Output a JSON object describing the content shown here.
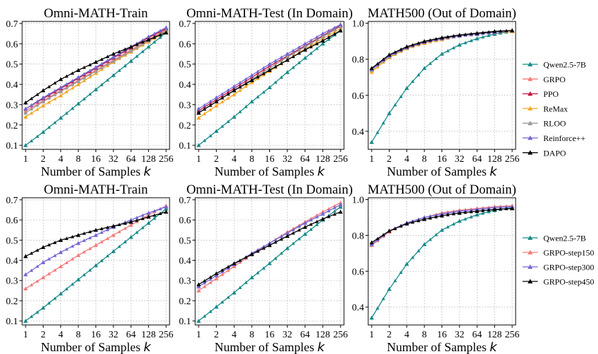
{
  "chart_data": [
    {
      "type": "line",
      "title": "Omni-MATH-Train",
      "xlabel": "Number of Samples k",
      "x": [
        1,
        2,
        4,
        8,
        16,
        32,
        64,
        128,
        256
      ],
      "xticklabels": [
        "1",
        "2",
        "4",
        "8",
        "16",
        "32",
        "64",
        "128",
        "256"
      ],
      "yticks": [
        "0.1",
        "0.2",
        "0.3",
        "0.4",
        "0.5",
        "0.6",
        "0.7"
      ],
      "ylim": [
        0.08,
        0.71
      ],
      "grid": true,
      "series": [
        {
          "name": "Qwen2.5-7B",
          "values": [
            0.1,
            0.165,
            0.235,
            0.305,
            0.375,
            0.445,
            0.515,
            0.585,
            0.655
          ]
        },
        {
          "name": "GRPO",
          "values": [
            0.27,
            0.32,
            0.37,
            0.42,
            0.47,
            0.52,
            0.57,
            0.62,
            0.67
          ]
        },
        {
          "name": "PPO",
          "values": [
            0.28,
            0.33,
            0.38,
            0.43,
            0.48,
            0.53,
            0.58,
            0.63,
            0.675
          ]
        },
        {
          "name": "ReMax",
          "values": [
            0.24,
            0.295,
            0.345,
            0.4,
            0.455,
            0.51,
            0.56,
            0.61,
            0.66
          ]
        },
        {
          "name": "RLOO",
          "values": [
            0.26,
            0.315,
            0.365,
            0.415,
            0.465,
            0.515,
            0.565,
            0.615,
            0.665
          ]
        },
        {
          "name": "Reinforce++",
          "values": [
            0.28,
            0.335,
            0.385,
            0.435,
            0.485,
            0.535,
            0.585,
            0.635,
            0.68
          ]
        },
        {
          "name": "DAPO",
          "values": [
            0.31,
            0.37,
            0.425,
            0.47,
            0.51,
            0.55,
            0.585,
            0.62,
            0.655
          ]
        }
      ]
    },
    {
      "type": "line",
      "title": "Omni-MATH-Test (In Domain)",
      "xlabel": "Number of Samples k",
      "x": [
        1,
        2,
        4,
        8,
        16,
        32,
        64,
        128,
        256
      ],
      "xticklabels": [
        "1",
        "2",
        "4",
        "8",
        "16",
        "32",
        "64",
        "128",
        "256"
      ],
      "yticks": [
        "0.1",
        "0.2",
        "0.3",
        "0.4",
        "0.5",
        "0.6",
        "0.7"
      ],
      "ylim": [
        0.08,
        0.71
      ],
      "grid": true,
      "series": [
        {
          "name": "Qwen2.5-7B",
          "values": [
            0.1,
            0.17,
            0.24,
            0.315,
            0.385,
            0.46,
            0.53,
            0.6,
            0.665
          ]
        },
        {
          "name": "GRPO",
          "values": [
            0.26,
            0.315,
            0.37,
            0.425,
            0.48,
            0.535,
            0.585,
            0.635,
            0.685
          ]
        },
        {
          "name": "PPO",
          "values": [
            0.27,
            0.325,
            0.38,
            0.435,
            0.49,
            0.54,
            0.59,
            0.64,
            0.69
          ]
        },
        {
          "name": "ReMax",
          "values": [
            0.235,
            0.295,
            0.35,
            0.41,
            0.465,
            0.52,
            0.575,
            0.625,
            0.675
          ]
        },
        {
          "name": "RLOO",
          "values": [
            0.26,
            0.315,
            0.37,
            0.425,
            0.48,
            0.535,
            0.585,
            0.635,
            0.685
          ]
        },
        {
          "name": "Reinforce++",
          "values": [
            0.28,
            0.335,
            0.39,
            0.445,
            0.5,
            0.55,
            0.6,
            0.65,
            0.695
          ]
        },
        {
          "name": "DAPO",
          "values": [
            0.26,
            0.315,
            0.37,
            0.42,
            0.47,
            0.52,
            0.57,
            0.615,
            0.665
          ]
        }
      ]
    },
    {
      "type": "line",
      "title": "MATH500 (Out of Domain)",
      "xlabel": "Number of Samples k",
      "x": [
        1,
        2,
        4,
        8,
        16,
        32,
        64,
        128,
        256
      ],
      "xticklabels": [
        "1",
        "2",
        "4",
        "8",
        "16",
        "32",
        "64",
        "128",
        "256"
      ],
      "yticks": [
        "0.4",
        "0.6",
        "0.8",
        "1.0"
      ],
      "ylim": [
        0.3,
        1.01
      ],
      "grid": true,
      "series": [
        {
          "name": "Qwen2.5-7B",
          "values": [
            0.34,
            0.5,
            0.64,
            0.75,
            0.83,
            0.88,
            0.915,
            0.94,
            0.955
          ]
        },
        {
          "name": "GRPO",
          "values": [
            0.74,
            0.82,
            0.865,
            0.895,
            0.915,
            0.93,
            0.94,
            0.95,
            0.96
          ]
        },
        {
          "name": "PPO",
          "values": [
            0.745,
            0.82,
            0.865,
            0.895,
            0.915,
            0.93,
            0.94,
            0.95,
            0.96
          ]
        },
        {
          "name": "ReMax",
          "values": [
            0.73,
            0.81,
            0.86,
            0.89,
            0.91,
            0.93,
            0.94,
            0.95,
            0.955
          ]
        },
        {
          "name": "RLOO",
          "values": [
            0.74,
            0.815,
            0.865,
            0.895,
            0.915,
            0.93,
            0.94,
            0.95,
            0.96
          ]
        },
        {
          "name": "Reinforce++",
          "values": [
            0.745,
            0.82,
            0.865,
            0.895,
            0.915,
            0.93,
            0.94,
            0.95,
            0.96
          ]
        },
        {
          "name": "DAPO",
          "values": [
            0.75,
            0.825,
            0.87,
            0.9,
            0.92,
            0.935,
            0.945,
            0.955,
            0.96
          ]
        }
      ]
    },
    {
      "type": "line",
      "title": "Omni-MATH-Train",
      "xlabel": "Number of Samples k",
      "x": [
        1,
        2,
        4,
        8,
        16,
        32,
        64,
        128,
        256
      ],
      "xticklabels": [
        "1",
        "2",
        "4",
        "8",
        "16",
        "32",
        "64",
        "128",
        "256"
      ],
      "yticks": [
        "0.1",
        "0.2",
        "0.3",
        "0.4",
        "0.5",
        "0.6",
        "0.7"
      ],
      "ylim": [
        0.08,
        0.71
      ],
      "grid": true,
      "series": [
        {
          "name": "Qwen2.5-7B",
          "values": [
            0.1,
            0.165,
            0.235,
            0.305,
            0.375,
            0.445,
            0.515,
            0.585,
            0.655
          ]
        },
        {
          "name": "GRPO-step150",
          "values": [
            0.26,
            0.315,
            0.37,
            0.425,
            0.475,
            0.525,
            0.575,
            0.625,
            0.67
          ]
        },
        {
          "name": "GRPO-step300",
          "values": [
            0.33,
            0.39,
            0.44,
            0.485,
            0.525,
            0.565,
            0.6,
            0.635,
            0.665
          ]
        },
        {
          "name": "GRPO-step450",
          "values": [
            0.42,
            0.465,
            0.5,
            0.525,
            0.55,
            0.57,
            0.59,
            0.615,
            0.64
          ]
        }
      ]
    },
    {
      "type": "line",
      "title": "Omni-MATH-Test (In Domain)",
      "xlabel": "Number of Samples k",
      "x": [
        1,
        2,
        4,
        8,
        16,
        32,
        64,
        128,
        256
      ],
      "xticklabels": [
        "1",
        "2",
        "4",
        "8",
        "16",
        "32",
        "64",
        "128",
        "256"
      ],
      "yticks": [
        "0.1",
        "0.2",
        "0.3",
        "0.4",
        "0.5",
        "0.6",
        "0.7"
      ],
      "ylim": [
        0.08,
        0.71
      ],
      "grid": true,
      "series": [
        {
          "name": "Qwen2.5-7B",
          "values": [
            0.1,
            0.17,
            0.24,
            0.315,
            0.385,
            0.46,
            0.53,
            0.6,
            0.665
          ]
        },
        {
          "name": "GRPO-step150",
          "values": [
            0.25,
            0.31,
            0.37,
            0.43,
            0.485,
            0.54,
            0.59,
            0.64,
            0.685
          ]
        },
        {
          "name": "GRPO-step300",
          "values": [
            0.27,
            0.325,
            0.38,
            0.435,
            0.485,
            0.535,
            0.585,
            0.63,
            0.675
          ]
        },
        {
          "name": "GRPO-step450",
          "values": [
            0.28,
            0.335,
            0.385,
            0.43,
            0.475,
            0.52,
            0.565,
            0.605,
            0.64
          ]
        }
      ]
    },
    {
      "type": "line",
      "title": "MATH500 (Out of Domain)",
      "xlabel": "Number of Samples k",
      "x": [
        1,
        2,
        4,
        8,
        16,
        32,
        64,
        128,
        256
      ],
      "xticklabels": [
        "1",
        "2",
        "4",
        "8",
        "16",
        "32",
        "64",
        "128",
        "256"
      ],
      "yticks": [
        "0.4",
        "0.6",
        "0.8",
        "1.0"
      ],
      "ylim": [
        0.3,
        1.01
      ],
      "grid": true,
      "series": [
        {
          "name": "Qwen2.5-7B",
          "values": [
            0.34,
            0.5,
            0.64,
            0.75,
            0.83,
            0.88,
            0.915,
            0.94,
            0.955
          ]
        },
        {
          "name": "GRPO-step150",
          "values": [
            0.745,
            0.82,
            0.87,
            0.9,
            0.925,
            0.94,
            0.95,
            0.96,
            0.965
          ]
        },
        {
          "name": "GRPO-step300",
          "values": [
            0.75,
            0.825,
            0.87,
            0.9,
            0.92,
            0.935,
            0.945,
            0.955,
            0.96
          ]
        },
        {
          "name": "GRPO-step450",
          "values": [
            0.76,
            0.825,
            0.865,
            0.89,
            0.91,
            0.925,
            0.935,
            0.945,
            0.95
          ]
        }
      ]
    }
  ],
  "legends": [
    {
      "placement": "right",
      "items": [
        {
          "label": "Qwen2.5-7B",
          "color": "#138a88"
        },
        {
          "label": "GRPO",
          "color": "#f47a7a"
        },
        {
          "label": "PPO",
          "color": "#c0143c"
        },
        {
          "label": "ReMax",
          "color": "#f6a623"
        },
        {
          "label": "RLOO",
          "color": "#9a9a9a"
        },
        {
          "label": "Reinforce++",
          "color": "#7466d4"
        },
        {
          "label": "DAPO",
          "color": "#000000"
        }
      ]
    },
    {
      "placement": "right",
      "items": [
        {
          "label": "Qwen2.5-7B",
          "color": "#138a88"
        },
        {
          "label": "GRPO-step150",
          "color": "#f47a7a"
        },
        {
          "label": "GRPO-step300",
          "color": "#7466d4"
        },
        {
          "label": "GRPO-step450",
          "color": "#000000"
        }
      ]
    }
  ]
}
